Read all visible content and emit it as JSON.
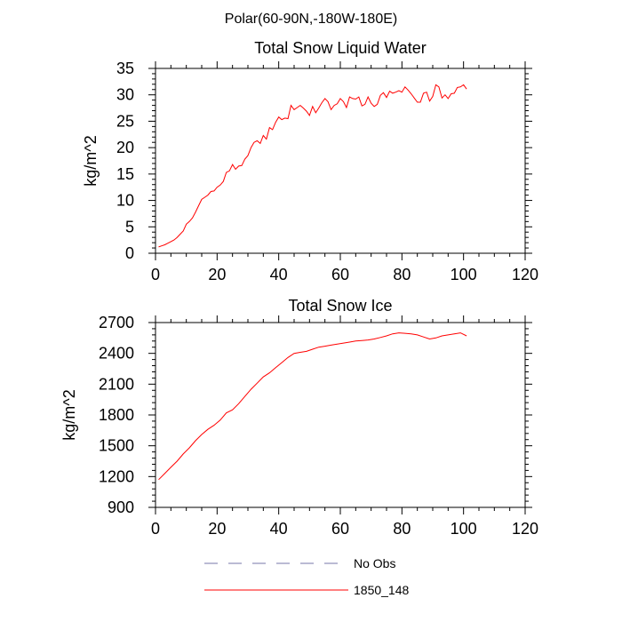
{
  "figure_title": "Polar(60-90N,-180W-180E)",
  "legend": {
    "entries": [
      {
        "label": "No Obs",
        "color": "#7777aa",
        "style": "dashed"
      },
      {
        "label": "1850_148",
        "color": "#ff0000",
        "style": "solid"
      }
    ]
  },
  "chart_data": [
    {
      "type": "line",
      "title": "Total Snow Liquid Water",
      "xlabel": "",
      "ylabel": "kg/m^2",
      "xlim": [
        0,
        120
      ],
      "ylim": [
        0,
        35
      ],
      "xticks": [
        0,
        20,
        40,
        60,
        80,
        100,
        120
      ],
      "yticks": [
        0,
        5,
        10,
        15,
        20,
        25,
        30,
        35
      ],
      "grid": false,
      "series": [
        {
          "name": "1850_148",
          "color": "#ff0000",
          "x": [
            1,
            2,
            3,
            4,
            5,
            6,
            7,
            8,
            9,
            10,
            11,
            12,
            13,
            14,
            15,
            16,
            17,
            18,
            19,
            20,
            21,
            22,
            23,
            24,
            25,
            26,
            27,
            28,
            29,
            30,
            31,
            32,
            33,
            34,
            35,
            36,
            37,
            38,
            39,
            40,
            41,
            42,
            43,
            44,
            45,
            46,
            47,
            48,
            49,
            50,
            51,
            52,
            53,
            54,
            55,
            56,
            57,
            58,
            59,
            60,
            61,
            62,
            63,
            64,
            65,
            66,
            67,
            68,
            69,
            70,
            71,
            72,
            73,
            74,
            75,
            76,
            77,
            78,
            79,
            80,
            81,
            82,
            83,
            84,
            85,
            86,
            87,
            88,
            89,
            90,
            91,
            92,
            93,
            94,
            95,
            96,
            97,
            98,
            99,
            100,
            101
          ],
          "y": [
            1.2,
            1.4,
            1.6,
            1.9,
            2.2,
            2.5,
            3.0,
            3.6,
            4.2,
            5.5,
            6.0,
            6.7,
            7.8,
            9.0,
            10.2,
            10.6,
            11.0,
            11.7,
            11.8,
            12.5,
            12.9,
            13.6,
            15.3,
            15.6,
            16.8,
            15.9,
            16.5,
            16.6,
            17.8,
            18.5,
            20.0,
            21.0,
            21.3,
            20.8,
            22.3,
            21.6,
            23.8,
            23.4,
            24.8,
            25.8,
            25.3,
            25.6,
            25.5,
            28.0,
            27.2,
            27.6,
            28.0,
            27.5,
            26.9,
            26.1,
            27.8,
            26.6,
            27.5,
            28.5,
            29.3,
            28.7,
            27.2,
            28.0,
            28.3,
            29.3,
            28.7,
            27.6,
            29.6,
            29.3,
            29.2,
            29.6,
            27.9,
            28.2,
            29.6,
            28.4,
            27.8,
            28.2,
            29.9,
            30.4,
            29.5,
            30.7,
            30.3,
            30.5,
            30.8,
            30.5,
            31.5,
            30.9,
            30.2,
            29.4,
            28.6,
            28.6,
            30.3,
            30.5,
            28.8,
            29.7,
            31.9,
            31.5,
            29.4,
            30.0,
            29.3,
            30.2,
            30.3,
            31.4,
            31.5,
            31.9,
            31.1
          ]
        }
      ]
    },
    {
      "type": "line",
      "title": "Total Snow Ice",
      "xlabel": "",
      "ylabel": "kg/m^2",
      "xlim": [
        0,
        120
      ],
      "ylim": [
        900,
        2700
      ],
      "xticks": [
        0,
        20,
        40,
        60,
        80,
        100,
        120
      ],
      "yticks": [
        900,
        1200,
        1500,
        1800,
        2100,
        2400,
        2700
      ],
      "grid": false,
      "series": [
        {
          "name": "1850_148",
          "color": "#ff0000",
          "x": [
            1,
            3,
            5,
            7,
            9,
            11,
            13,
            15,
            17,
            19,
            21,
            23,
            25,
            27,
            29,
            31,
            33,
            35,
            37,
            39,
            41,
            43,
            45,
            47,
            49,
            51,
            53,
            55,
            57,
            59,
            61,
            63,
            65,
            67,
            69,
            71,
            73,
            75,
            77,
            79,
            81,
            83,
            85,
            87,
            89,
            91,
            93,
            95,
            97,
            99,
            101
          ],
          "y": [
            1170,
            1230,
            1290,
            1350,
            1420,
            1480,
            1550,
            1610,
            1660,
            1700,
            1750,
            1820,
            1850,
            1910,
            1980,
            2050,
            2110,
            2170,
            2210,
            2260,
            2310,
            2360,
            2400,
            2410,
            2420,
            2440,
            2460,
            2470,
            2480,
            2490,
            2500,
            2510,
            2520,
            2525,
            2530,
            2540,
            2555,
            2570,
            2590,
            2600,
            2595,
            2590,
            2580,
            2560,
            2540,
            2550,
            2570,
            2580,
            2590,
            2600,
            2570
          ]
        }
      ]
    }
  ]
}
